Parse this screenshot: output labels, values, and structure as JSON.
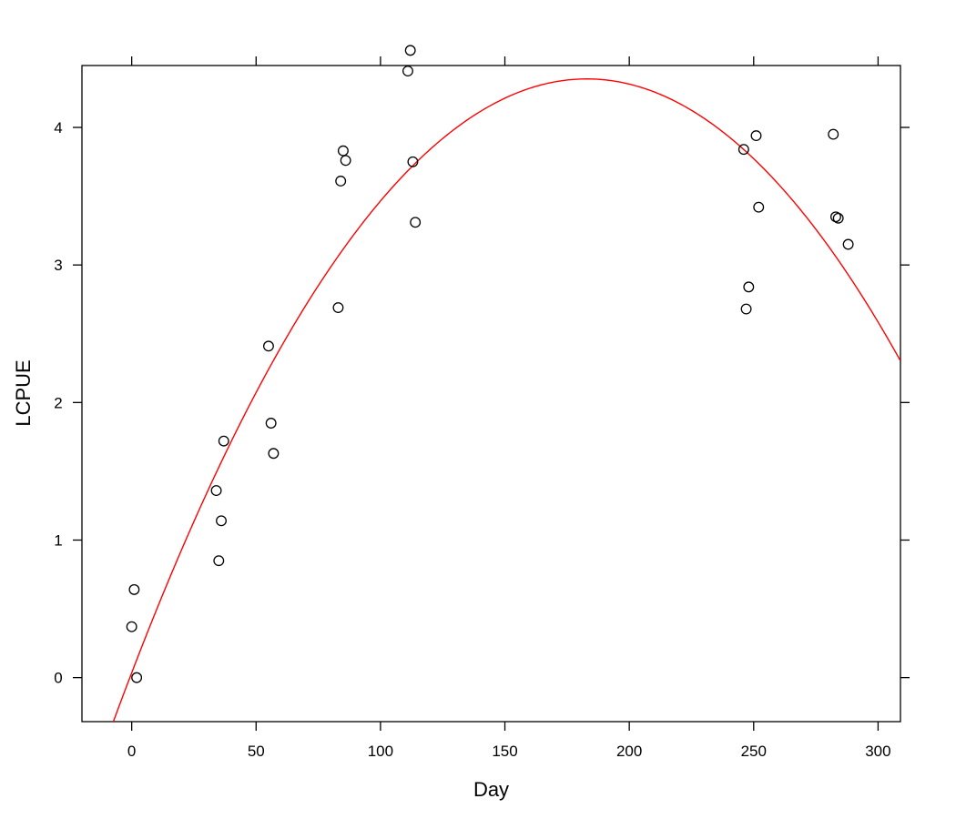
{
  "chart_data": {
    "type": "scatter",
    "xlabel": "Day",
    "ylabel": "LCPUE",
    "xlim": [
      -20,
      309
    ],
    "ylim": [
      -0.32,
      4.45
    ],
    "x_ticks": [
      0,
      50,
      100,
      150,
      200,
      250,
      300
    ],
    "y_ticks": [
      0,
      1,
      2,
      3,
      4
    ],
    "grid": false,
    "points": [
      {
        "x": 0,
        "y": 0.37
      },
      {
        "x": 1,
        "y": 0.64
      },
      {
        "x": 2,
        "y": 0.0
      },
      {
        "x": 34,
        "y": 1.36
      },
      {
        "x": 35,
        "y": 0.85
      },
      {
        "x": 36,
        "y": 1.14
      },
      {
        "x": 37,
        "y": 1.72
      },
      {
        "x": 55,
        "y": 2.41
      },
      {
        "x": 56,
        "y": 1.85
      },
      {
        "x": 57,
        "y": 1.63
      },
      {
        "x": 83,
        "y": 2.69
      },
      {
        "x": 84,
        "y": 3.61
      },
      {
        "x": 85,
        "y": 3.83
      },
      {
        "x": 86,
        "y": 3.76
      },
      {
        "x": 111,
        "y": 4.41
      },
      {
        "x": 112,
        "y": 4.56
      },
      {
        "x": 113,
        "y": 3.75
      },
      {
        "x": 114,
        "y": 3.31
      },
      {
        "x": 246,
        "y": 3.84
      },
      {
        "x": 247,
        "y": 2.68
      },
      {
        "x": 248,
        "y": 2.84
      },
      {
        "x": 251,
        "y": 3.94
      },
      {
        "x": 252,
        "y": 3.42
      },
      {
        "x": 282,
        "y": 3.95
      },
      {
        "x": 283,
        "y": 3.35
      },
      {
        "x": 284,
        "y": 3.34
      },
      {
        "x": 288,
        "y": 3.15
      }
    ],
    "fit_curve": {
      "type": "quadratic",
      "coefficients": {
        "a": -0.000129,
        "b": 0.0472,
        "c": 0.035
      },
      "color": "#ff0000"
    },
    "point_color": "#000000"
  }
}
